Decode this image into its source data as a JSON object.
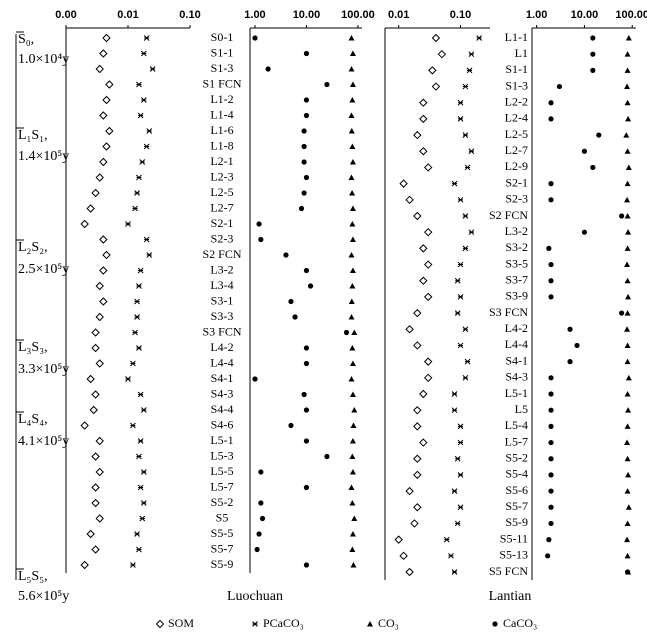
{
  "stratigraphy": [
    {
      "unit": "S₀,",
      "age": "1.0×10⁴y"
    },
    {
      "unit": "L₁S₁,",
      "age": "1.4×10⁵y"
    },
    {
      "unit": "L₂S₂,",
      "age": "2.5×10⁵y"
    },
    {
      "unit": "L₃S₃,",
      "age": "3.3×10⁵y"
    },
    {
      "unit": "L₄S₄,",
      "age": "4.1×10⁵y"
    },
    {
      "unit": "L₅S₅,",
      "age": "5.6×10⁵y"
    }
  ],
  "chart_data": [
    {
      "type": "scatter",
      "title": "Luochuan",
      "log_scale": true,
      "categories": [
        "S0-1",
        "S1-1",
        "S1-3",
        "S1 FCN",
        "L1-2",
        "L1-4",
        "L1-6",
        "L1-8",
        "L2-1",
        "L2-3",
        "L2-5",
        "L2-7",
        "S2-1",
        "S2-3",
        "S2 FCN",
        "L3-2",
        "L3-4",
        "S3-1",
        "S3-3",
        "S3 FCN",
        "L4-2",
        "L4-4",
        "S4-1",
        "S4-3",
        "S4-4",
        "S4-6",
        "L5-1",
        "L5-3",
        "L5-5",
        "L5-7",
        "S5-2",
        "S5",
        "S5-5",
        "S5-7",
        "S5-9"
      ],
      "xlim": [
        0.001,
        0.1
      ],
      "xticks": [
        {
          "value": 0.001,
          "label": "0.00"
        },
        0.01,
        {
          "value": 0.1,
          "label": "0.10"
        }
      ],
      "x2lim": [
        0.8,
        120
      ],
      "x2ticks": [
        {
          "value": 1,
          "label": "1.00"
        },
        {
          "value": 10,
          "label": "10.00"
        },
        {
          "value": 100,
          "label": "100.00"
        }
      ],
      "series": [
        {
          "name": "SOM",
          "color": "#000000",
          "marker": "diamond",
          "axis": "x",
          "values": [
            0.0045,
            0.004,
            0.0035,
            0.005,
            0.0045,
            0.004,
            0.005,
            0.0045,
            0.004,
            0.0035,
            0.003,
            0.0025,
            0.002,
            0.004,
            0.0045,
            0.004,
            0.0035,
            0.004,
            0.0035,
            0.003,
            0.003,
            0.0035,
            0.0025,
            0.003,
            0.0028,
            0.002,
            0.0035,
            0.003,
            0.0035,
            0.003,
            0.003,
            0.0035,
            0.0025,
            0.003,
            0.002
          ]
        },
        {
          "name": "PCaCO₃",
          "color": "#000000",
          "marker": "cross",
          "axis": "x",
          "values": [
            0.02,
            0.018,
            0.025,
            0.015,
            0.018,
            0.016,
            0.022,
            0.02,
            0.017,
            0.015,
            0.014,
            0.013,
            0.01,
            0.02,
            0.022,
            0.016,
            0.015,
            0.014,
            0.014,
            0.013,
            0.015,
            0.012,
            0.01,
            0.016,
            0.018,
            0.012,
            0.016,
            0.015,
            0.018,
            0.016,
            0.018,
            0.017,
            0.014,
            0.015,
            0.012
          ]
        },
        {
          "name": "CO₃",
          "color": "#000000",
          "marker": "triangle",
          "axis": "x2",
          "values": [
            75,
            80,
            75,
            80,
            78,
            75,
            76,
            78,
            80,
            75,
            77,
            80,
            78,
            80,
            75,
            80,
            78,
            76,
            75,
            85,
            78,
            80,
            75,
            80,
            85,
            82,
            80,
            78,
            80,
            75,
            78,
            85,
            80,
            78,
            82
          ]
        },
        {
          "name": "CaCO₃",
          "color": "#000000",
          "marker": "dot",
          "axis": "x2",
          "values": [
            1.0,
            10,
            1.8,
            25,
            10,
            10,
            9,
            9,
            9,
            10,
            9,
            8,
            1.2,
            1.3,
            4,
            10,
            12,
            5,
            6,
            60,
            10,
            10,
            1.0,
            9,
            10,
            5,
            10,
            25,
            1.3,
            10,
            1.3,
            1.4,
            1.2,
            1.1,
            10
          ]
        }
      ]
    },
    {
      "type": "scatter",
      "title": "Lantian",
      "log_scale": true,
      "categories": [
        "L1-1",
        "L1",
        "S1-1",
        "S1-3",
        "L2-2",
        "L2-4",
        "L2-5",
        "L2-7",
        "L2-9",
        "S2-1",
        "S2-3",
        "S2 FCN",
        "L3-2",
        "S3-2",
        "S3-5",
        "S3-7",
        "S3-9",
        "S3 FCN",
        "L4-2",
        "L4-4",
        "S4-1",
        "S4-3",
        "L5-1",
        "L5",
        "L5-4",
        "L5-7",
        "S5-2",
        "S5-4",
        "S5-6",
        "S5-7",
        "S5-9",
        "S5-11",
        "S5-13",
        "S5 FCN"
      ],
      "xlim": [
        0.006,
        0.3
      ],
      "xticks": [
        0.01,
        {
          "value": 0.1,
          "label": "0.10"
        }
      ],
      "x2lim": [
        0.8,
        120
      ],
      "x2ticks": [
        {
          "value": 1,
          "label": "1.00"
        },
        {
          "value": 10,
          "label": "10.00"
        },
        {
          "value": 100,
          "label": "100.00"
        }
      ],
      "series": [
        {
          "color": "#000000",
          "marker": "diamond",
          "axis": "x",
          "values": [
            0.04,
            0.05,
            0.035,
            0.04,
            0.025,
            0.025,
            0.02,
            0.025,
            0.03,
            0.012,
            0.015,
            0.02,
            0.03,
            0.025,
            0.03,
            0.025,
            0.03,
            0.02,
            0.015,
            0.02,
            0.03,
            0.03,
            0.025,
            0.02,
            0.02,
            0.025,
            0.02,
            0.02,
            0.015,
            0.02,
            0.018,
            0.01,
            0.012,
            0.015
          ]
        },
        {
          "color": "#000000",
          "marker": "cross",
          "axis": "x",
          "values": [
            0.2,
            0.15,
            0.14,
            0.12,
            0.1,
            0.1,
            0.12,
            0.15,
            0.13,
            0.08,
            0.1,
            0.12,
            0.15,
            0.12,
            0.1,
            0.09,
            0.1,
            0.09,
            0.12,
            0.1,
            0.13,
            0.12,
            0.08,
            0.08,
            0.1,
            0.1,
            0.09,
            0.1,
            0.08,
            0.1,
            0.09,
            0.06,
            0.07,
            0.08
          ]
        },
        {
          "color": "#000000",
          "marker": "triangle",
          "axis": "x2",
          "values": [
            85,
            80,
            80,
            78,
            80,
            82,
            75,
            80,
            85,
            80,
            78,
            80,
            82,
            80,
            78,
            80,
            82,
            80,
            78,
            80,
            80,
            85,
            80,
            82,
            80,
            78,
            80,
            82,
            80,
            85,
            80,
            78,
            80,
            82
          ]
        },
        {
          "color": "#000000",
          "marker": "dot",
          "axis": "x2",
          "values": [
            15,
            15,
            15,
            3,
            2,
            2,
            20,
            10,
            15,
            2,
            2,
            60,
            10,
            1.8,
            2,
            2,
            2,
            60,
            5,
            7,
            5,
            2,
            2,
            2,
            2,
            2,
            2,
            2,
            2,
            2,
            2,
            1.8,
            1.7,
            80
          ]
        }
      ]
    }
  ]
}
